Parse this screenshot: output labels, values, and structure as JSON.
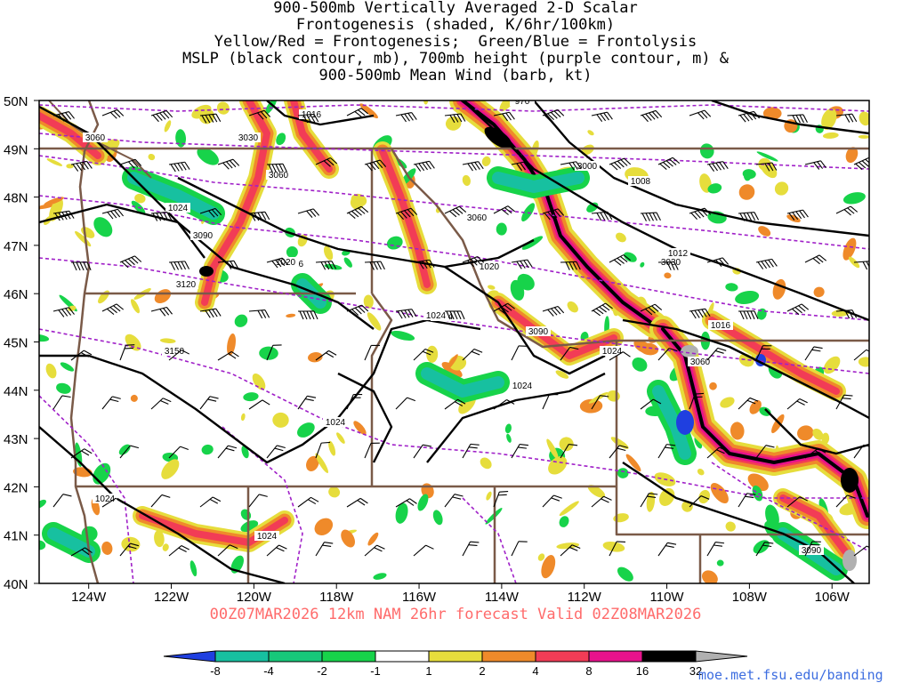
{
  "title_lines": [
    "900-500mb Vertically Averaged 2-D Scalar",
    "Frontogenesis (shaded, K/6hr/100km)",
    "Yellow/Red = Frontogenesis;  Green/Blue = Frontolysis",
    "MSLP (black contour, mb), 700mb height (purple contour, m) &",
    "900-500mb Mean Wind (barb, kt)"
  ],
  "map": {
    "lat_labels": [
      "50N",
      "49N",
      "48N",
      "47N",
      "46N",
      "45N",
      "44N",
      "43N",
      "42N",
      "41N",
      "40N"
    ],
    "lon_labels": [
      "124W",
      "122W",
      "120W",
      "118W",
      "116W",
      "114W",
      "112W",
      "110W",
      "108W",
      "106W"
    ],
    "lon_range": [
      -125.2,
      -105.1
    ],
    "lat_range": [
      40,
      50
    ],
    "shading_colors": {
      "frontolysis_strong": "#1f3fe0",
      "frontolysis_mid": "#17c0a0",
      "frontolysis_weak": "#17d34a",
      "frontogenesis_weak": "#e6dd3c",
      "frontogenesis_mid": "#ef8a2a",
      "frontogenesis_strong": "#f23c56",
      "frontogenesis_high": "#e8128c",
      "frontogenesis_extreme": "#000000",
      "frontogenesis_max": "#b0b0b0"
    },
    "contour_colors": {
      "mslp": "#000000",
      "height700": "#a020c8",
      "borders": "#7a5a48"
    },
    "mslp_labels": [
      "1016",
      "1016",
      "1024",
      "1020",
      "1020",
      "1024",
      "1024",
      "1024",
      "1024",
      "1024",
      "1024",
      "1024",
      "1012",
      "1008",
      "1016",
      "970"
    ],
    "height_labels": [
      "3060",
      "3030",
      "3060",
      "3090",
      "3120",
      "3150",
      "3060",
      "3000",
      "3030",
      "3090",
      "3060",
      "3090"
    ]
  },
  "footer": {
    "run_info": "00Z07MAR2026 12km NAM 26hr forecast Valid 02Z08MAR2026",
    "credit": "moe.met.fsu.edu/banding"
  },
  "colorbar": {
    "labels": [
      "-8",
      "-4",
      "-2",
      "-1",
      "1",
      "2",
      "4",
      "8",
      "16",
      "32"
    ],
    "colors": [
      "#1f3fe0",
      "#17c0a0",
      "#17c87a",
      "#17d34a",
      "#ffffff",
      "#e6dd3c",
      "#ef8a2a",
      "#f23c56",
      "#e8128c",
      "#000000",
      "#b0b0b0"
    ]
  }
}
